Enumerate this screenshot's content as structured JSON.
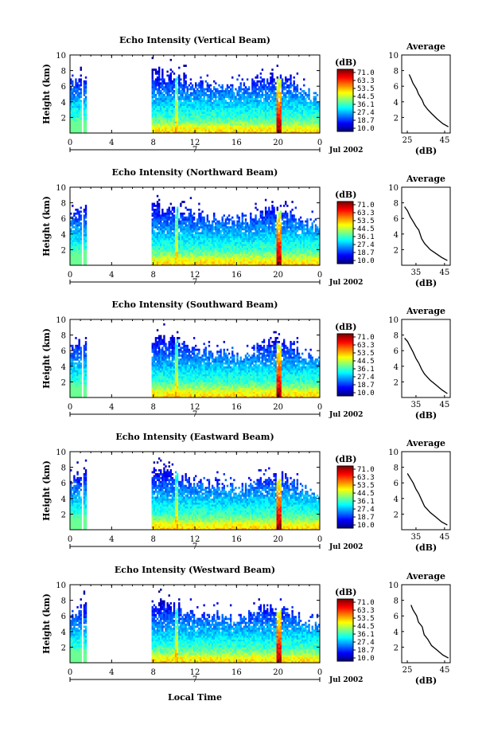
{
  "chart_data": [
    {
      "type": "heatmap",
      "title": "Echo Intensity (Vertical Beam)",
      "ylabel": "Height (km)",
      "xticks": [
        "0",
        "4",
        "8",
        "12",
        "16",
        "20",
        "0"
      ],
      "xlim": [
        0,
        24
      ],
      "yticks": [
        "2",
        "4",
        "6",
        "8",
        "10"
      ],
      "ylim": [
        0,
        10
      ],
      "date_label": "Jul 2002",
      "marker_label": "7",
      "colorbar": {
        "unit": "(dB)",
        "ticks": [
          "71.0",
          "63.3",
          "53.5",
          "44.5",
          "36.1",
          "27.4",
          "18.7",
          "10.0"
        ]
      },
      "average": {
        "title": "Average",
        "xlabel": "(dB)",
        "xticks": [
          "25",
          "45"
        ],
        "xlim": [
          22,
          48
        ],
        "ylim": [
          0,
          10
        ],
        "profile": [
          [
            47,
            0.8
          ],
          [
            44,
            1.2
          ],
          [
            41,
            1.8
          ],
          [
            38,
            2.5
          ],
          [
            36,
            3.0
          ],
          [
            34,
            3.6
          ],
          [
            33,
            4.2
          ],
          [
            31,
            5.0
          ],
          [
            30,
            5.6
          ],
          [
            29,
            6.0
          ],
          [
            28,
            6.4
          ],
          [
            27,
            7.0
          ],
          [
            26,
            7.5
          ]
        ]
      },
      "data_gap": [
        1.6,
        7.9
      ],
      "echo_top": [
        [
          0,
          6.3
        ],
        [
          1.6,
          7.2
        ],
        [
          8,
          7.8
        ],
        [
          10,
          7.3
        ],
        [
          12,
          6.5
        ],
        [
          16,
          5.5
        ],
        [
          20,
          7.4
        ],
        [
          22,
          6.0
        ],
        [
          24,
          4.2
        ]
      ]
    },
    {
      "type": "heatmap",
      "title": "Echo Intensity (Northward Beam)",
      "ylabel": "Height (km)",
      "xticks": [
        "0",
        "4",
        "8",
        "12",
        "16",
        "20",
        "0"
      ],
      "xlim": [
        0,
        24
      ],
      "yticks": [
        "2",
        "4",
        "6",
        "8",
        "10"
      ],
      "ylim": [
        0,
        10
      ],
      "date_label": "Jul 2002",
      "marker_label": "7",
      "colorbar": {
        "unit": "(dB)",
        "ticks": [
          "71.0",
          "63.3",
          "53.5",
          "44.5",
          "36.1",
          "27.4",
          "18.7",
          "10.0"
        ]
      },
      "average": {
        "title": "Average",
        "xlabel": "(dB)",
        "xticks": [
          "35",
          "45"
        ],
        "xlim": [
          30,
          47
        ],
        "ylim": [
          0,
          10
        ],
        "profile": [
          [
            46,
            0.6
          ],
          [
            44,
            1.0
          ],
          [
            42,
            1.5
          ],
          [
            40,
            2.0
          ],
          [
            38,
            2.8
          ],
          [
            37,
            3.4
          ],
          [
            36,
            4.5
          ],
          [
            35,
            5.0
          ],
          [
            34,
            5.6
          ],
          [
            33,
            6.2
          ],
          [
            32,
            7.0
          ],
          [
            31,
            7.5
          ]
        ]
      },
      "data_gap": [
        1.6,
        7.9
      ],
      "echo_top": [
        [
          0,
          6.2
        ],
        [
          1.6,
          7.2
        ],
        [
          8,
          7.6
        ],
        [
          10,
          7.3
        ],
        [
          12,
          6.3
        ],
        [
          16,
          5.8
        ],
        [
          20,
          7.3
        ],
        [
          22,
          6.2
        ],
        [
          24,
          4.3
        ]
      ]
    },
    {
      "type": "heatmap",
      "title": "Echo Intensity (Southward Beam)",
      "ylabel": "Height (km)",
      "xticks": [
        "0",
        "4",
        "8",
        "12",
        "16",
        "20",
        "0"
      ],
      "xlim": [
        0,
        24
      ],
      "yticks": [
        "2",
        "4",
        "6",
        "8",
        "10"
      ],
      "ylim": [
        0,
        10
      ],
      "date_label": "Jul 2002",
      "marker_label": "7",
      "colorbar": {
        "unit": "(dB)",
        "ticks": [
          "71.0",
          "63.3",
          "53.5",
          "44.5",
          "36.1",
          "27.4",
          "18.7",
          "10.0"
        ]
      },
      "average": {
        "title": "Average",
        "xlabel": "(dB)",
        "xticks": [
          "35",
          "45"
        ],
        "xlim": [
          30,
          47
        ],
        "ylim": [
          0,
          10
        ],
        "profile": [
          [
            46,
            0.5
          ],
          [
            44,
            1.0
          ],
          [
            42,
            1.6
          ],
          [
            40,
            2.2
          ],
          [
            38,
            3.0
          ],
          [
            37,
            3.6
          ],
          [
            36,
            4.4
          ],
          [
            35,
            5.0
          ],
          [
            34,
            5.8
          ],
          [
            33,
            6.5
          ],
          [
            32,
            7.2
          ],
          [
            31,
            7.6
          ]
        ]
      },
      "data_gap": [
        1.6,
        7.9
      ],
      "echo_top": [
        [
          0,
          6.0
        ],
        [
          1.6,
          7.2
        ],
        [
          8,
          7.5
        ],
        [
          10,
          7.2
        ],
        [
          12,
          6.0
        ],
        [
          16,
          5.3
        ],
        [
          20,
          7.3
        ],
        [
          22,
          6.0
        ],
        [
          24,
          4.2
        ]
      ]
    },
    {
      "type": "heatmap",
      "title": "Echo Intensity (Eastward Beam)",
      "ylabel": "Height (km)",
      "xticks": [
        "0",
        "4",
        "8",
        "12",
        "16",
        "20",
        "0"
      ],
      "xlim": [
        0,
        24
      ],
      "yticks": [
        "2",
        "4",
        "6",
        "8",
        "10"
      ],
      "ylim": [
        0,
        10
      ],
      "date_label": "Jul 2002",
      "marker_label": "7",
      "colorbar": {
        "unit": "(dB)",
        "ticks": [
          "71.0",
          "63.3",
          "53.5",
          "44.5",
          "36.1",
          "27.4",
          "18.7",
          "10.0"
        ]
      },
      "average": {
        "title": "Average",
        "xlabel": "(dB)",
        "xticks": [
          "35",
          "45"
        ],
        "xlim": [
          30,
          47
        ],
        "ylim": [
          0,
          10
        ],
        "profile": [
          [
            46,
            0.6
          ],
          [
            44,
            1.0
          ],
          [
            42,
            1.6
          ],
          [
            40,
            2.2
          ],
          [
            38,
            3.0
          ],
          [
            37,
            3.8
          ],
          [
            36,
            4.6
          ],
          [
            35,
            5.2
          ],
          [
            34,
            6.0
          ],
          [
            33,
            6.6
          ],
          [
            32,
            7.2
          ]
        ]
      },
      "data_gap": [
        1.6,
        7.9
      ],
      "echo_top": [
        [
          0,
          6.0
        ],
        [
          1.6,
          7.2
        ],
        [
          8,
          7.4
        ],
        [
          10,
          7.1
        ],
        [
          12,
          6.1
        ],
        [
          16,
          5.2
        ],
        [
          20,
          7.0
        ],
        [
          22,
          5.5
        ],
        [
          24,
          4.0
        ]
      ]
    },
    {
      "type": "heatmap",
      "title": "Echo Intensity (Westward Beam)",
      "ylabel": "Height (km)",
      "xticks": [
        "0",
        "4",
        "8",
        "12",
        "16",
        "20",
        "0"
      ],
      "xlim": [
        0,
        24
      ],
      "yticks": [
        "2",
        "4",
        "6",
        "8",
        "10"
      ],
      "ylim": [
        0,
        10
      ],
      "date_label": "Jul 2002",
      "marker_label": "7",
      "colorbar": {
        "unit": "(dB)",
        "ticks": [
          "71.0",
          "63.3",
          "53.5",
          "44.5",
          "36.1",
          "27.4",
          "18.7",
          "10.0"
        ]
      },
      "average": {
        "title": "Average",
        "xlabel": "(dB)",
        "xticks": [
          "25",
          "45"
        ],
        "xlim": [
          22,
          48
        ],
        "ylim": [
          0,
          10
        ],
        "profile": [
          [
            47,
            0.6
          ],
          [
            44,
            1.0
          ],
          [
            41,
            1.6
          ],
          [
            38,
            2.2
          ],
          [
            36,
            3.0
          ],
          [
            34,
            3.6
          ],
          [
            33,
            4.6
          ],
          [
            31,
            5.2
          ],
          [
            30,
            6.0
          ],
          [
            28,
            6.8
          ],
          [
            27,
            7.4
          ]
        ]
      },
      "data_gap": [
        1.6,
        7.9
      ],
      "echo_top": [
        [
          0,
          6.2
        ],
        [
          1.6,
          7.2
        ],
        [
          8,
          7.8
        ],
        [
          10,
          7.3
        ],
        [
          12,
          6.3
        ],
        [
          16,
          5.6
        ],
        [
          20,
          7.2
        ],
        [
          22,
          5.8
        ],
        [
          24,
          4.1
        ]
      ]
    }
  ],
  "xlabel": "Local Time"
}
